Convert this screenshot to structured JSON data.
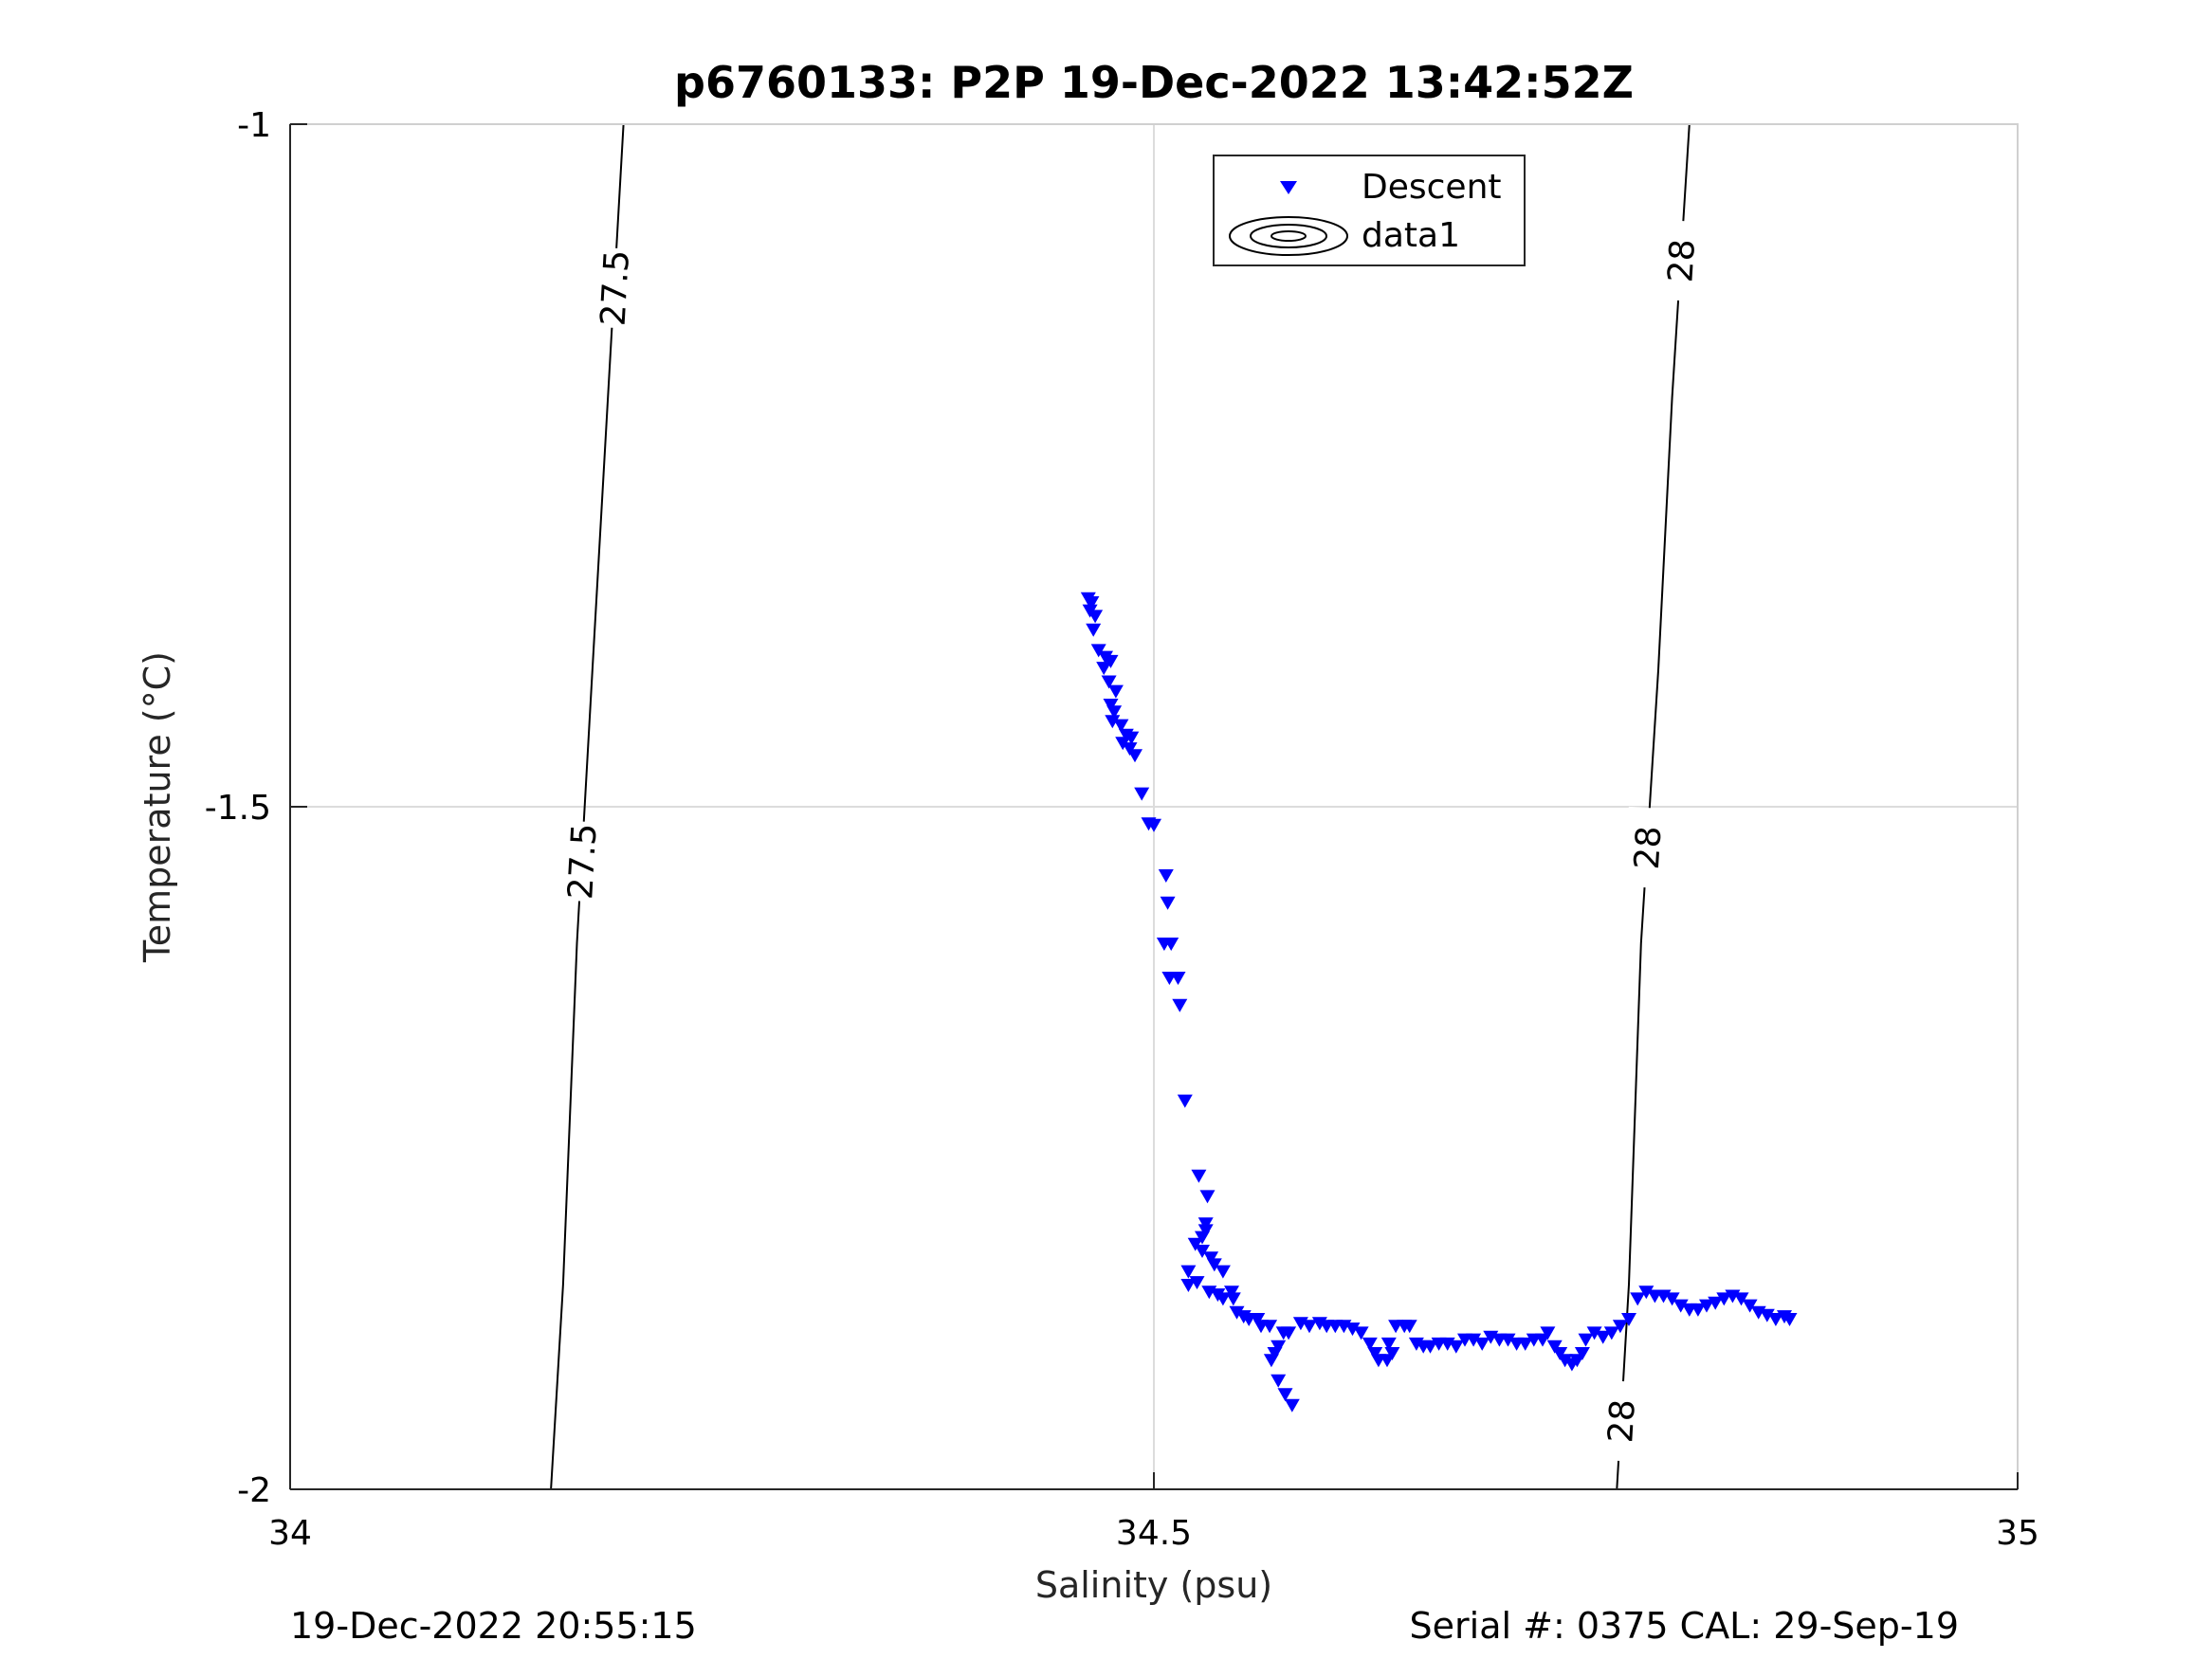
{
  "chart_data": {
    "type": "scatter",
    "title": "p6760133: P2P 19-Dec-2022 13:42:52Z",
    "xlabel": "Salinity (psu)",
    "ylabel": "Temperature (°C)",
    "xlim": [
      34,
      35
    ],
    "ylim": [
      -2,
      -1
    ],
    "xticks": [
      "34",
      "34.5",
      "35"
    ],
    "yticks": [
      "-1",
      "-1.5",
      "-2"
    ],
    "grid": true,
    "legend_location": "top-center",
    "legend": [
      "Descent",
      "data1"
    ],
    "series": [
      {
        "name": "Descent",
        "marker": "triangle-down",
        "color": "#0000ff",
        "points": [
          [
            34.462,
            -1.347
          ],
          [
            34.464,
            -1.35
          ],
          [
            34.463,
            -1.356
          ],
          [
            34.466,
            -1.36
          ],
          [
            34.465,
            -1.37
          ],
          [
            34.468,
            -1.385
          ],
          [
            34.472,
            -1.39
          ],
          [
            34.471,
            -1.398
          ],
          [
            34.475,
            -1.393
          ],
          [
            34.474,
            -1.408
          ],
          [
            34.478,
            -1.415
          ],
          [
            34.475,
            -1.425
          ],
          [
            34.477,
            -1.43
          ],
          [
            34.476,
            -1.437
          ],
          [
            34.481,
            -1.44
          ],
          [
            34.484,
            -1.447
          ],
          [
            34.482,
            -1.453
          ],
          [
            34.487,
            -1.449
          ],
          [
            34.486,
            -1.457
          ],
          [
            34.489,
            -1.462
          ],
          [
            34.493,
            -1.49
          ],
          [
            34.497,
            -1.512
          ],
          [
            34.5,
            -1.513
          ],
          [
            34.507,
            -1.55
          ],
          [
            34.508,
            -1.57
          ],
          [
            34.506,
            -1.6
          ],
          [
            34.51,
            -1.6
          ],
          [
            34.509,
            -1.625
          ],
          [
            34.514,
            -1.625
          ],
          [
            34.515,
            -1.645
          ],
          [
            34.518,
            -1.715
          ],
          [
            34.526,
            -1.77
          ],
          [
            34.531,
            -1.785
          ],
          [
            34.524,
            -1.82
          ],
          [
            34.528,
            -1.815
          ],
          [
            34.53,
            -1.81
          ],
          [
            34.53,
            -1.805
          ],
          [
            34.528,
            -1.825
          ],
          [
            34.533,
            -1.83
          ],
          [
            34.535,
            -1.835
          ],
          [
            34.54,
            -1.84
          ],
          [
            34.52,
            -1.84
          ],
          [
            34.52,
            -1.85
          ],
          [
            34.525,
            -1.848
          ],
          [
            34.532,
            -1.855
          ],
          [
            34.537,
            -1.857
          ],
          [
            34.54,
            -1.86
          ],
          [
            34.545,
            -1.855
          ],
          [
            34.546,
            -1.86
          ],
          [
            34.548,
            -1.87
          ],
          [
            34.552,
            -1.873
          ],
          [
            34.555,
            -1.875
          ],
          [
            34.56,
            -1.875
          ],
          [
            34.562,
            -1.88
          ],
          [
            34.567,
            -1.88
          ],
          [
            34.57,
            -1.9
          ],
          [
            34.568,
            -1.905
          ],
          [
            34.572,
            -1.895
          ],
          [
            34.575,
            -1.885
          ],
          [
            34.578,
            -1.885
          ],
          [
            34.572,
            -1.92
          ],
          [
            34.576,
            -1.93
          ],
          [
            34.58,
            -1.938
          ],
          [
            34.585,
            -1.878
          ],
          [
            34.59,
            -1.88
          ],
          [
            34.596,
            -1.878
          ],
          [
            34.6,
            -1.88
          ],
          [
            34.605,
            -1.88
          ],
          [
            34.61,
            -1.88
          ],
          [
            34.615,
            -1.882
          ],
          [
            34.62,
            -1.885
          ],
          [
            34.625,
            -1.893
          ],
          [
            34.628,
            -1.9
          ],
          [
            34.63,
            -1.905
          ],
          [
            34.635,
            -1.905
          ],
          [
            34.638,
            -1.9
          ],
          [
            34.636,
            -1.893
          ],
          [
            34.64,
            -1.88
          ],
          [
            34.645,
            -1.88
          ],
          [
            34.648,
            -1.88
          ],
          [
            34.652,
            -1.893
          ],
          [
            34.656,
            -1.895
          ],
          [
            34.66,
            -1.895
          ],
          [
            34.665,
            -1.893
          ],
          [
            34.67,
            -1.893
          ],
          [
            34.675,
            -1.895
          ],
          [
            34.68,
            -1.89
          ],
          [
            34.685,
            -1.89
          ],
          [
            34.69,
            -1.893
          ],
          [
            34.695,
            -1.888
          ],
          [
            34.7,
            -1.89
          ],
          [
            34.705,
            -1.89
          ],
          [
            34.71,
            -1.893
          ],
          [
            34.715,
            -1.893
          ],
          [
            34.72,
            -1.89
          ],
          [
            34.725,
            -1.89
          ],
          [
            34.728,
            -1.885
          ],
          [
            34.732,
            -1.895
          ],
          [
            34.735,
            -1.9
          ],
          [
            34.738,
            -1.905
          ],
          [
            34.742,
            -1.908
          ],
          [
            34.745,
            -1.905
          ],
          [
            34.748,
            -1.9
          ],
          [
            34.75,
            -1.89
          ],
          [
            34.755,
            -1.885
          ],
          [
            34.76,
            -1.888
          ],
          [
            34.765,
            -1.885
          ],
          [
            34.77,
            -1.88
          ],
          [
            34.775,
            -1.875
          ],
          [
            34.78,
            -1.86
          ],
          [
            34.785,
            -1.855
          ],
          [
            34.79,
            -1.858
          ],
          [
            34.795,
            -1.858
          ],
          [
            34.8,
            -1.86
          ],
          [
            34.805,
            -1.865
          ],
          [
            34.81,
            -1.868
          ],
          [
            34.815,
            -1.868
          ],
          [
            34.82,
            -1.865
          ],
          [
            34.825,
            -1.863
          ],
          [
            34.83,
            -1.86
          ],
          [
            34.835,
            -1.858
          ],
          [
            34.84,
            -1.86
          ],
          [
            34.845,
            -1.865
          ],
          [
            34.85,
            -1.87
          ],
          [
            34.855,
            -1.872
          ],
          [
            34.86,
            -1.875
          ],
          [
            34.865,
            -1.873
          ],
          [
            34.868,
            -1.875
          ]
        ]
      }
    ],
    "contours": [
      {
        "label": "27.5",
        "points": [
          [
            34.151,
            -2.0
          ],
          [
            34.158,
            -1.85
          ],
          [
            34.166,
            -1.6
          ],
          [
            34.175,
            -1.4
          ],
          [
            34.184,
            -1.2
          ],
          [
            34.193,
            -1.0
          ]
        ],
        "label_at": [
          -1.12,
          -1.54
        ]
      },
      {
        "label": "28",
        "points": [
          [
            34.768,
            -2.0
          ],
          [
            34.775,
            -1.85
          ],
          [
            34.782,
            -1.6
          ],
          [
            34.792,
            -1.4
          ],
          [
            34.8,
            -1.2
          ],
          [
            34.81,
            -1.0
          ]
        ],
        "label_at": [
          -1.1,
          -1.53,
          -1.95
        ]
      }
    ]
  },
  "footer": {
    "timestamp": "19-Dec-2022 20:55:15",
    "serial": "Serial #: 0375  CAL: 29-Sep-19"
  }
}
